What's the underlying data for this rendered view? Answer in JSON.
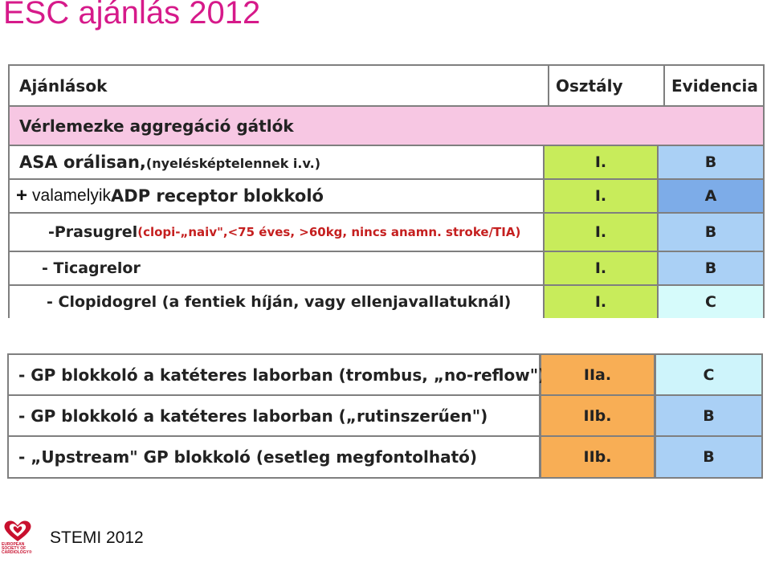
{
  "title": "ESC ajánlás 2012",
  "header": {
    "col1": "Ajánlások",
    "col2": "Osztály",
    "col3": "Evidencia"
  },
  "section": "Vérlemezke aggregáció gátlók",
  "rows_top": [
    {
      "main": "ASA orálisan,",
      "note": " (nyelésképtelennek i.v.)",
      "class": "I.",
      "evidence": "B"
    },
    {
      "plus": "+",
      "prefix": "valamelyik ",
      "main": "ADP receptor blokkoló",
      "class": "I.",
      "evidence": "A"
    },
    {
      "main": "-Prasugrel",
      "note": " (clopi-„naiv\",<75 éves, >60kg, nincs anamn. stroke/TIA)",
      "class": "I.",
      "evidence": "B"
    },
    {
      "main": "- Ticagrelor",
      "class": "I.",
      "evidence": "B"
    },
    {
      "main": "- Clopidogrel (a fentiek híján, vagy ellenjavallatuknál)",
      "class": "I.",
      "evidence": "C"
    }
  ],
  "rows_bottom": [
    {
      "main": "- GP blokkoló a katéteres laborban (trombus, „no-reflow\")",
      "class": "IIa.",
      "evidence": "C"
    },
    {
      "main": "- GP blokkoló a katéteres laborban („rutinszerűen\")",
      "class": "IIb.",
      "evidence": "B"
    },
    {
      "main": "- „Upstream\" GP blokkoló (esetleg megfontolható)",
      "class": "IIb.",
      "evidence": "B"
    }
  ],
  "logo": {
    "icon": "heart-icon",
    "lines": [
      "EUROPEAN",
      "SOCIETY OF",
      "CARDIOLOGY®"
    ]
  },
  "footer": "STEMI 2012",
  "colors": {
    "title": "#d61a8a",
    "section": "#f7c7e3",
    "class_i": "#c8ec5b",
    "class_ii": "#f8ae55",
    "evidence_b": "#aad0f5",
    "evidence_a": "#7dace8",
    "evidence_c": "#d6fbfb"
  }
}
